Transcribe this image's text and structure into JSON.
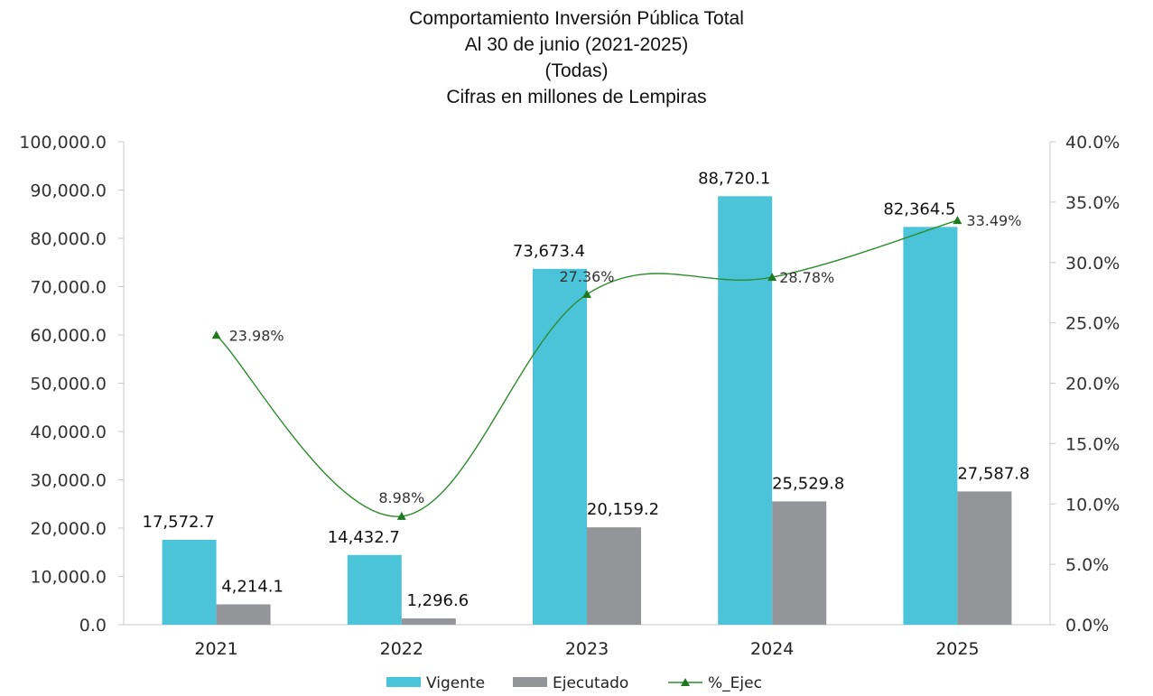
{
  "chart_data": {
    "type": "bar",
    "title": [
      "Comportamiento Inversión Pública Total",
      "Al 30 de junio (2021-2025)",
      "(Todas)",
      "Cifras en millones de Lempiras"
    ],
    "categories": [
      "2021",
      "2022",
      "2023",
      "2024",
      "2025"
    ],
    "series": [
      {
        "name": "Vigente",
        "kind": "bar",
        "axis": "left",
        "color": "#4bc3d9",
        "values": [
          17572.7,
          14432.7,
          73673.4,
          88720.1,
          82364.5
        ],
        "labels": [
          "17,572.7",
          "14,432.7",
          "73,673.4",
          "88,720.1",
          "82,364.5"
        ]
      },
      {
        "name": "Ejecutado",
        "kind": "bar",
        "axis": "left",
        "color": "#939598",
        "values": [
          4214.1,
          1296.6,
          20159.2,
          25529.8,
          27587.8
        ],
        "labels": [
          "4,214.1",
          "1,296.6",
          "20,159.2",
          "25,529.8",
          "27,587.8"
        ]
      },
      {
        "name": "%_Ejec",
        "kind": "line",
        "axis": "right",
        "color": "#2e8b2e",
        "values": [
          23.98,
          8.98,
          27.36,
          28.78,
          33.49
        ],
        "labels": [
          "23.98%",
          "8.98%",
          "27.36%",
          "28.78%",
          "33.49%"
        ]
      }
    ],
    "y_left": {
      "lim": [
        0,
        100000
      ],
      "ticks": [
        "0.0",
        "10,000.0",
        "20,000.0",
        "30,000.0",
        "40,000.0",
        "50,000.0",
        "60,000.0",
        "70,000.0",
        "80,000.0",
        "90,000.0",
        "100,000.0"
      ]
    },
    "y_right": {
      "lim": [
        0,
        40
      ],
      "ticks": [
        "0.0%",
        "5.0%",
        "10.0%",
        "15.0%",
        "20.0%",
        "25.0%",
        "30.0%",
        "35.0%",
        "40.0%"
      ]
    },
    "legend_position": "bottom",
    "grid": false
  }
}
